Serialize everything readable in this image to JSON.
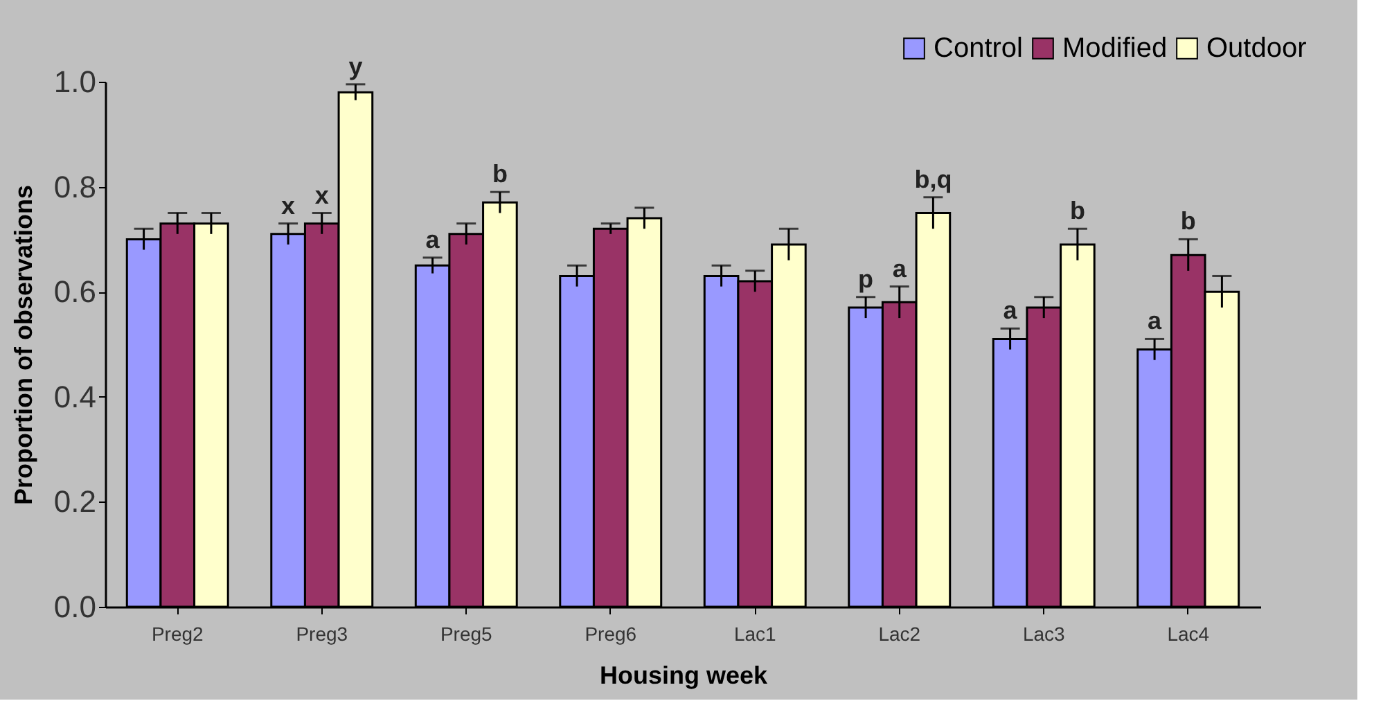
{
  "chart_data": {
    "type": "bar",
    "xlabel": "Housing week",
    "ylabel": "Proportion of observations",
    "categories": [
      "Preg2",
      "Preg3",
      "Preg5",
      "Preg6",
      "Lac1",
      "Lac2",
      "Lac3",
      "Lac4"
    ],
    "series": [
      {
        "name": "Control",
        "color": "#9999ff",
        "values": [
          0.7,
          0.71,
          0.65,
          0.63,
          0.63,
          0.57,
          0.51,
          0.49
        ],
        "errors": [
          0.02,
          0.02,
          0.015,
          0.02,
          0.02,
          0.02,
          0.02,
          0.02
        ],
        "value_labels": [
          null,
          "x",
          "a",
          null,
          null,
          "p",
          "a",
          "a"
        ]
      },
      {
        "name": "Modified",
        "color": "#993366",
        "values": [
          0.73,
          0.73,
          0.71,
          0.72,
          0.62,
          0.58,
          0.57,
          0.67
        ],
        "errors": [
          0.02,
          0.02,
          0.02,
          0.01,
          0.02,
          0.03,
          0.02,
          0.03
        ],
        "value_labels": [
          null,
          "x",
          null,
          null,
          null,
          "a",
          null,
          "b"
        ]
      },
      {
        "name": "Outdoor",
        "color": "#ffffcc",
        "values": [
          0.73,
          0.98,
          0.77,
          0.74,
          0.69,
          0.75,
          0.69,
          0.6
        ],
        "errors": [
          0.02,
          0.015,
          0.02,
          0.02,
          0.03,
          0.03,
          0.03,
          0.03
        ],
        "value_labels": [
          null,
          "y",
          "b",
          null,
          null,
          "b,q",
          "b",
          null
        ]
      }
    ],
    "ylim": [
      0,
      1.0
    ],
    "yticks": [
      {
        "value": 0,
        "label": "0.0"
      },
      {
        "value": 0.2,
        "label": "0.2"
      },
      {
        "value": 0.4,
        "label": "0.4"
      },
      {
        "value": 0.6,
        "label": "0.6"
      },
      {
        "value": 0.8,
        "label": "0.8"
      },
      {
        "value": 1.0,
        "label": "1.0"
      }
    ],
    "grid": false,
    "legend": "top right"
  }
}
